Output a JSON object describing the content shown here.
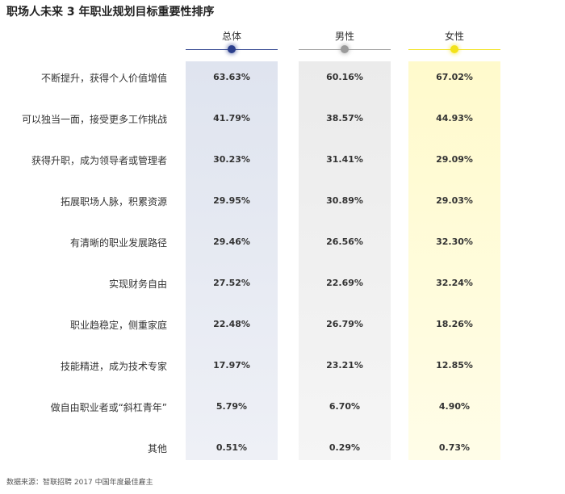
{
  "chart_data": {
    "type": "table",
    "title": "职场人未来 3 年职业规划目标重要性排序",
    "columns": [
      {
        "name": "总体",
        "color": "#2b3f8c"
      },
      {
        "name": "男性",
        "color": "#9a9a9a"
      },
      {
        "name": "女性",
        "color": "#f2e21a"
      }
    ],
    "rows": [
      {
        "label": "不断提升，获得个人价值增值",
        "values": [
          "63.63%",
          "60.16%",
          "67.02%"
        ]
      },
      {
        "label": "可以独当一面，接受更多工作挑战",
        "values": [
          "41.79%",
          "38.57%",
          "44.93%"
        ]
      },
      {
        "label": "获得升职，成为领导者或管理者",
        "values": [
          "30.23%",
          "31.41%",
          "29.09%"
        ]
      },
      {
        "label": "拓展职场人脉，积累资源",
        "values": [
          "29.95%",
          "30.89%",
          "29.03%"
        ]
      },
      {
        "label": "有清晰的职业发展路径",
        "values": [
          "29.46%",
          "26.56%",
          "32.30%"
        ]
      },
      {
        "label": "实现财务自由",
        "values": [
          "27.52%",
          "22.69%",
          "32.24%"
        ]
      },
      {
        "label": "职业趋稳定，侧重家庭",
        "values": [
          "22.48%",
          "26.79%",
          "18.26%"
        ]
      },
      {
        "label": "技能精进，成为技术专家",
        "values": [
          "17.97%",
          "23.21%",
          "12.85%"
        ]
      },
      {
        "label": "做自由职业者或“斜杠青年”",
        "values": [
          "5.79%",
          "6.70%",
          "4.90%"
        ]
      },
      {
        "label": "其他",
        "values": [
          "0.51%",
          "0.29%",
          "0.73%"
        ]
      }
    ],
    "source": "数据来源：智联招聘 2017 中国年度最佳雇主"
  }
}
